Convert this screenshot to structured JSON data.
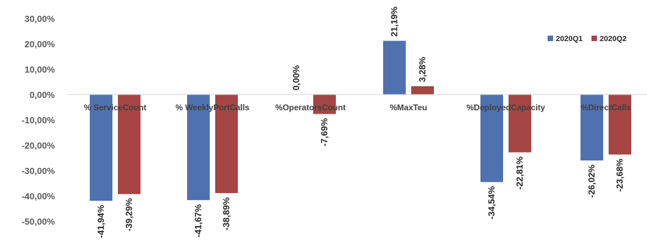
{
  "chart_data": {
    "type": "bar",
    "title": "",
    "xlabel": "",
    "ylabel": "",
    "ylim": [
      -50,
      30
    ],
    "y_ticks": [
      30,
      20,
      10,
      0,
      -10,
      -20,
      -30,
      -40,
      -50
    ],
    "y_tick_labels": [
      "30,00%",
      "20,00%",
      "10,00%",
      "0,00%",
      "-10,00%",
      "-20,00%",
      "-30,00%",
      "-40,00%",
      "-50,00%"
    ],
    "categories": [
      "% ServiceCount",
      "% WeeklyPortCalls",
      "%OperatorsCount",
      "%MaxTeu",
      "%DeployedCapacity",
      "%DirectCalls"
    ],
    "series": [
      {
        "name": "2020Q1",
        "color": "#4F71B0",
        "values": [
          -41.94,
          -41.67,
          0.0,
          21.19,
          -34.54,
          -26.02
        ],
        "labels": [
          "-41,94%",
          "-41,67%",
          "0,00%",
          "21,19%",
          "-34,54%",
          "-26,02%"
        ]
      },
      {
        "name": "2020Q2",
        "color": "#A54544",
        "values": [
          -39.29,
          -38.89,
          -7.69,
          3.28,
          -22.81,
          -23.68
        ],
        "labels": [
          "-39,29%",
          "-38,89%",
          "-7,69%",
          "3,28%",
          "-22,81%",
          "-23,68%"
        ]
      }
    ],
    "grid": false,
    "legend_position": "top-right"
  }
}
